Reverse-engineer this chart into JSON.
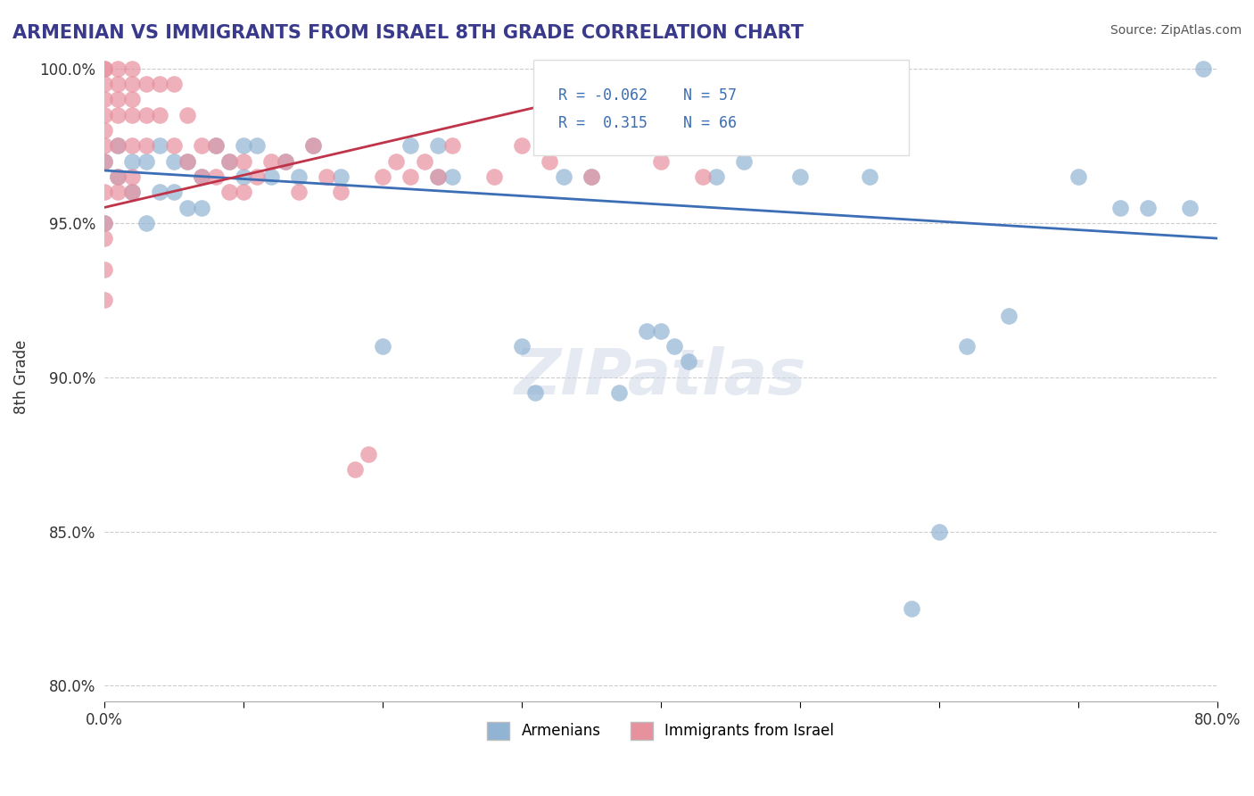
{
  "title": "ARMENIAN VS IMMIGRANTS FROM ISRAEL 8TH GRADE CORRELATION CHART",
  "source": "Source: ZipAtlas.com",
  "ylabel": "8th Grade",
  "xlabel": "",
  "xlim": [
    0.0,
    0.8
  ],
  "ylim": [
    0.795,
    1.005
  ],
  "xticks": [
    0.0,
    0.1,
    0.2,
    0.3,
    0.4,
    0.5,
    0.6,
    0.7,
    0.8
  ],
  "xticklabels": [
    "0.0%",
    "",
    "",
    "",
    "",
    "",
    "",
    "",
    "80.0%"
  ],
  "yticks": [
    0.8,
    0.85,
    0.9,
    0.95,
    1.0
  ],
  "yticklabels": [
    "80.0%",
    "85.0%",
    "90.0%",
    "95.0%",
    "100.0%"
  ],
  "watermark": "ZIPatlas",
  "legend_r1": "R = -0.062",
  "legend_n1": "N = 57",
  "legend_r2": "R =  0.315",
  "legend_n2": "N = 66",
  "blue_color": "#92b4d4",
  "pink_color": "#e8919e",
  "blue_line_color": "#3b6eb5",
  "pink_line_color": "#c0344a",
  "title_color": "#3a3a8c",
  "source_color": "#555555",
  "legend_label1": "Armenians",
  "legend_label2": "Immigrants from Israel",
  "blue_scatter_x": [
    0.0,
    0.0,
    0.01,
    0.01,
    0.02,
    0.02,
    0.03,
    0.03,
    0.04,
    0.04,
    0.05,
    0.05,
    0.06,
    0.06,
    0.07,
    0.07,
    0.08,
    0.09,
    0.1,
    0.1,
    0.11,
    0.12,
    0.13,
    0.14,
    0.15,
    0.17,
    0.2,
    0.22,
    0.24,
    0.24,
    0.25,
    0.3,
    0.31,
    0.33,
    0.34,
    0.35,
    0.36,
    0.37,
    0.38,
    0.39,
    0.4,
    0.41,
    0.42,
    0.44,
    0.46,
    0.5,
    0.51,
    0.55,
    0.58,
    0.6,
    0.62,
    0.65,
    0.7,
    0.73,
    0.75,
    0.78,
    0.79
  ],
  "blue_scatter_y": [
    0.97,
    0.95,
    0.965,
    0.975,
    0.97,
    0.96,
    0.97,
    0.95,
    0.975,
    0.96,
    0.97,
    0.96,
    0.97,
    0.955,
    0.965,
    0.955,
    0.975,
    0.97,
    0.975,
    0.965,
    0.975,
    0.965,
    0.97,
    0.965,
    0.975,
    0.965,
    0.91,
    0.975,
    0.965,
    0.975,
    0.965,
    0.91,
    0.895,
    0.965,
    0.975,
    0.965,
    0.975,
    0.895,
    0.975,
    0.915,
    0.915,
    0.91,
    0.905,
    0.965,
    0.97,
    0.965,
    0.975,
    0.965,
    0.825,
    0.85,
    0.91,
    0.92,
    0.965,
    0.955,
    0.955,
    0.955,
    1.0
  ],
  "pink_scatter_x": [
    0.0,
    0.0,
    0.0,
    0.0,
    0.0,
    0.0,
    0.0,
    0.0,
    0.0,
    0.0,
    0.0,
    0.0,
    0.0,
    0.01,
    0.01,
    0.01,
    0.01,
    0.01,
    0.01,
    0.01,
    0.02,
    0.02,
    0.02,
    0.02,
    0.02,
    0.02,
    0.02,
    0.03,
    0.03,
    0.03,
    0.04,
    0.04,
    0.05,
    0.05,
    0.06,
    0.06,
    0.07,
    0.07,
    0.08,
    0.08,
    0.09,
    0.09,
    0.1,
    0.1,
    0.11,
    0.12,
    0.13,
    0.14,
    0.15,
    0.16,
    0.17,
    0.18,
    0.19,
    0.2,
    0.21,
    0.22,
    0.23,
    0.24,
    0.25,
    0.28,
    0.3,
    0.32,
    0.35,
    0.37,
    0.4,
    0.43
  ],
  "pink_scatter_y": [
    1.0,
    1.0,
    0.995,
    0.99,
    0.985,
    0.98,
    0.975,
    0.97,
    0.96,
    0.95,
    0.945,
    0.935,
    0.925,
    1.0,
    0.995,
    0.99,
    0.985,
    0.975,
    0.965,
    0.96,
    1.0,
    0.995,
    0.99,
    0.985,
    0.975,
    0.965,
    0.96,
    0.995,
    0.985,
    0.975,
    0.995,
    0.985,
    0.995,
    0.975,
    0.985,
    0.97,
    0.975,
    0.965,
    0.975,
    0.965,
    0.97,
    0.96,
    0.97,
    0.96,
    0.965,
    0.97,
    0.97,
    0.96,
    0.975,
    0.965,
    0.96,
    0.87,
    0.875,
    0.965,
    0.97,
    0.965,
    0.97,
    0.965,
    0.975,
    0.965,
    0.975,
    0.97,
    0.965,
    0.975,
    0.97,
    0.965
  ],
  "blue_trendline_x": [
    0.0,
    0.8
  ],
  "blue_trendline_y": [
    0.967,
    0.945
  ],
  "pink_trendline_x": [
    0.0,
    0.43
  ],
  "pink_trendline_y": [
    0.955,
    1.0
  ]
}
